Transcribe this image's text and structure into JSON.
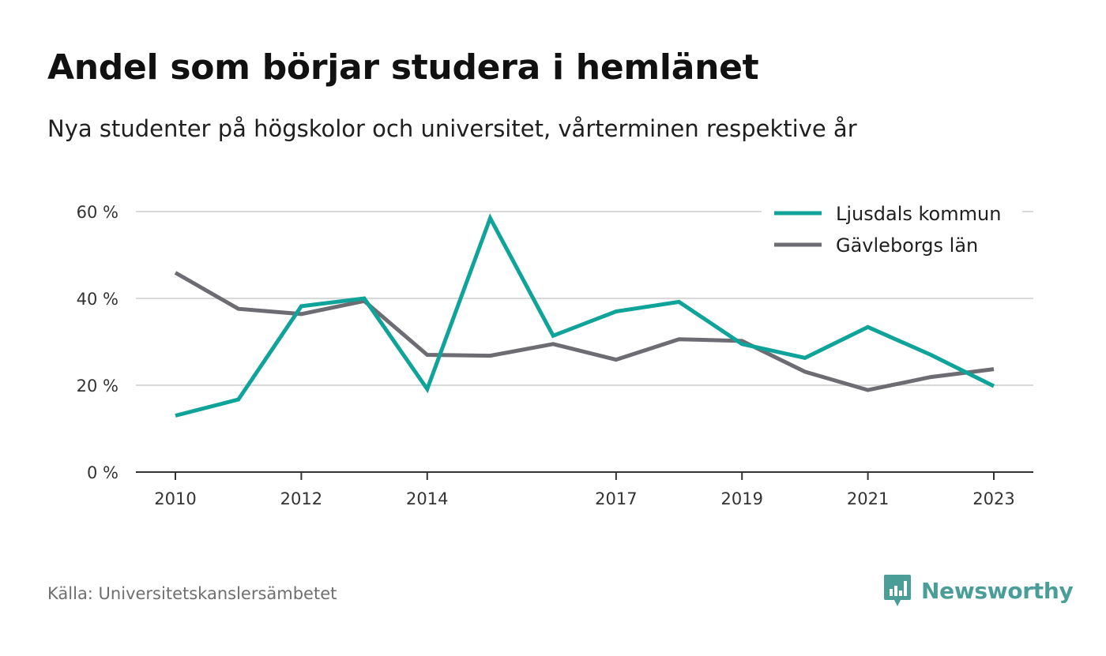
{
  "header": {
    "title": "Andel som börjar studera i hemlänet",
    "subtitle": "Nya studenter på högskolor och universitet, vårterminen respektive år"
  },
  "footer": {
    "source": "Källa: Universitetskanslersämbetet",
    "brand": "Newsworthy"
  },
  "colors": {
    "ljusdal": "#0fa39a",
    "gavleborg": "#6e6c73",
    "grid": "#d9d9d9",
    "axis": "#333333",
    "brand": "#4a9e97"
  },
  "chart_data": {
    "type": "line",
    "x": [
      2010,
      2011,
      2012,
      2013,
      2014,
      2015,
      2016,
      2017,
      2018,
      2019,
      2020,
      2021,
      2022,
      2023
    ],
    "x_tick_labels": [
      "2010",
      "2012",
      "2014",
      "2017",
      "2019",
      "2021",
      "2023"
    ],
    "y_tick_labels": [
      "0 %",
      "20 %",
      "40 %",
      "60 %"
    ],
    "y_ticks": [
      0,
      20,
      40,
      60
    ],
    "ylim": [
      0,
      60
    ],
    "xlim": [
      2010,
      2023
    ],
    "grid": true,
    "legend_position": "top-right",
    "series": [
      {
        "name": "Ljusdals kommun",
        "values": [
          13,
          16.7,
          38.2,
          40,
          19.1,
          58.5,
          31.4,
          37,
          39.2,
          29.5,
          26.3,
          33.4,
          27,
          19.8
        ]
      },
      {
        "name": "Gävleborgs län",
        "values": [
          45.9,
          37.6,
          36.4,
          39.4,
          27,
          26.8,
          29.5,
          25.9,
          30.6,
          30.2,
          23.1,
          18.9,
          21.9,
          23.7
        ]
      }
    ]
  }
}
